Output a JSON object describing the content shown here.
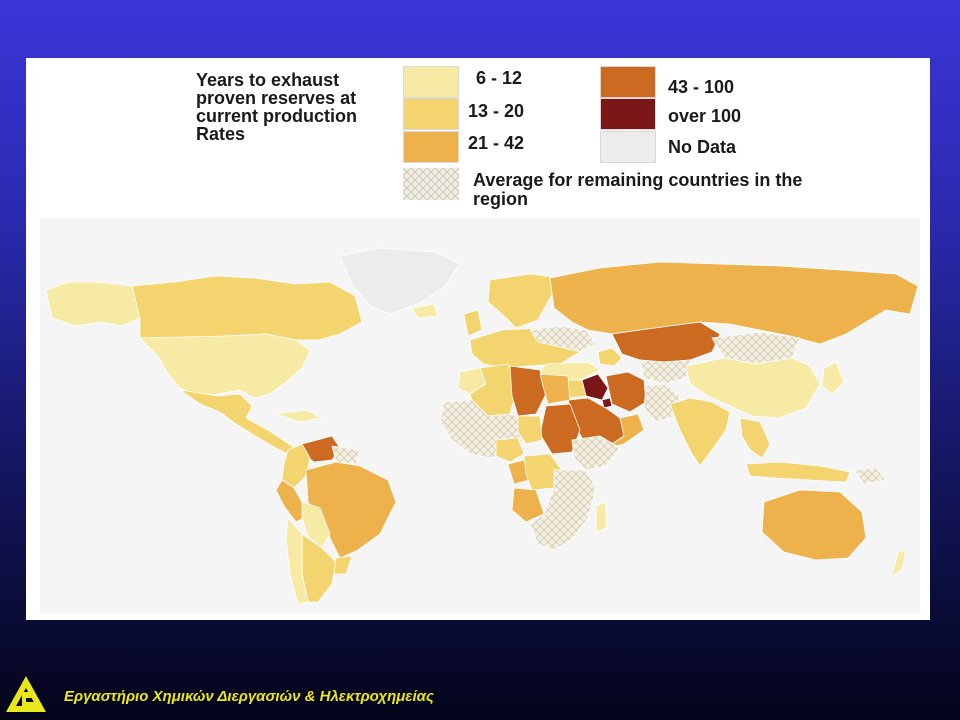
{
  "legend": {
    "title": "Years to exhaust\nproven reserves at\ncurrent production\nRates",
    "items": [
      {
        "label": "6 - 12",
        "color": "#f6eaa4"
      },
      {
        "label": "13 - 20",
        "color": "#f3d46e"
      },
      {
        "label": "21 - 42",
        "color": "#eeb24c"
      },
      {
        "label": "43 - 100",
        "color": "#cc6a22"
      },
      {
        "label": "over 100",
        "color": "#7a1616"
      },
      {
        "label": "No Data",
        "color": "#ececec"
      }
    ],
    "average_label": "Average for remaining countries in the region"
  },
  "footer": {
    "caption": "Εργαστήριο Χημικών Διεργασιών & Ηλεκτροχημείας"
  }
}
